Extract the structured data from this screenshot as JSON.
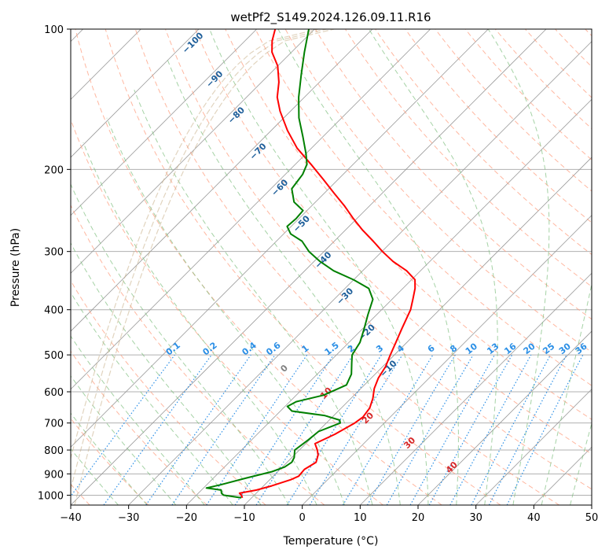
{
  "chart_data": {
    "type": "line",
    "title": "wetPf2_S149.2024.126.09.11.R16",
    "xlabel": "Temperature (°C)",
    "ylabel": "Pressure (hPa)",
    "xlim": [
      -40,
      50
    ],
    "ylim": [
      1050,
      100
    ],
    "y_scale": "log",
    "x_ticks": [
      "−40",
      "−30",
      "−20",
      "−10",
      "0",
      "10",
      "20",
      "30",
      "40",
      "50"
    ],
    "x_tick_values": [
      -40,
      -30,
      -20,
      -10,
      0,
      10,
      20,
      30,
      40,
      50
    ],
    "y_ticks": [
      "100",
      "200",
      "300",
      "400",
      "500",
      "600",
      "700",
      "800",
      "900",
      "1000"
    ],
    "y_tick_values": [
      100,
      200,
      300,
      400,
      500,
      600,
      700,
      800,
      900,
      1000
    ],
    "grid": true,
    "skew": 45,
    "series": [
      {
        "role": "temperature",
        "color": "#ff0000",
        "points": [
          [
            1013,
            -11.6
          ],
          [
            1000,
            -12.2
          ],
          [
            990,
            -12.9
          ],
          [
            975,
            -10.5
          ],
          [
            955,
            -8.6
          ],
          [
            925,
            -6.3
          ],
          [
            910,
            -5.6
          ],
          [
            880,
            -5.8
          ],
          [
            850,
            -5.0
          ],
          [
            820,
            -5.9
          ],
          [
            800,
            -6.9
          ],
          [
            775,
            -8.4
          ],
          [
            740,
            -6.6
          ],
          [
            700,
            -5.1
          ],
          [
            680,
            -4.7
          ],
          [
            650,
            -5.1
          ],
          [
            620,
            -6.2
          ],
          [
            590,
            -7.7
          ],
          [
            560,
            -8.8
          ],
          [
            530,
            -9.5
          ],
          [
            500,
            -10.7
          ],
          [
            470,
            -11.9
          ],
          [
            440,
            -13.2
          ],
          [
            400,
            -15.0
          ],
          [
            380,
            -16.4
          ],
          [
            360,
            -17.9
          ],
          [
            345,
            -19.4
          ],
          [
            330,
            -22.4
          ],
          [
            315,
            -26.4
          ],
          [
            300,
            -29.9
          ],
          [
            285,
            -33.3
          ],
          [
            270,
            -37.0
          ],
          [
            255,
            -40.6
          ],
          [
            240,
            -44.2
          ],
          [
            225,
            -48.3
          ],
          [
            210,
            -52.6
          ],
          [
            195,
            -57.3
          ],
          [
            180,
            -62.5
          ],
          [
            165,
            -67.2
          ],
          [
            150,
            -71.8
          ],
          [
            140,
            -74.7
          ],
          [
            130,
            -77.0
          ],
          [
            120,
            -80.0
          ],
          [
            112,
            -83.4
          ],
          [
            106,
            -85.3
          ],
          [
            100,
            -86.8
          ]
        ]
      },
      {
        "role": "dewpoint",
        "color": "#008000",
        "points": [
          [
            1013,
            -11.8
          ],
          [
            1000,
            -15.3
          ],
          [
            990,
            -16.0
          ],
          [
            975,
            -16.6
          ],
          [
            965,
            -19.5
          ],
          [
            950,
            -17.6
          ],
          [
            920,
            -14.5
          ],
          [
            890,
            -11.0
          ],
          [
            870,
            -9.6
          ],
          [
            850,
            -9.2
          ],
          [
            830,
            -9.6
          ],
          [
            800,
            -10.8
          ],
          [
            760,
            -10.2
          ],
          [
            730,
            -9.9
          ],
          [
            700,
            -7.6
          ],
          [
            690,
            -8.2
          ],
          [
            675,
            -11.5
          ],
          [
            660,
            -18.0
          ],
          [
            645,
            -19.6
          ],
          [
            630,
            -18.9
          ],
          [
            610,
            -15.3
          ],
          [
            580,
            -13.1
          ],
          [
            550,
            -14.1
          ],
          [
            520,
            -16.0
          ],
          [
            500,
            -17.3
          ],
          [
            470,
            -18.1
          ],
          [
            440,
            -19.7
          ],
          [
            410,
            -21.5
          ],
          [
            380,
            -23.3
          ],
          [
            360,
            -25.9
          ],
          [
            345,
            -30.0
          ],
          [
            330,
            -35.0
          ],
          [
            315,
            -39.0
          ],
          [
            300,
            -42.6
          ],
          [
            285,
            -45.6
          ],
          [
            275,
            -48.8
          ],
          [
            265,
            -50.7
          ],
          [
            255,
            -50.5
          ],
          [
            245,
            -50.7
          ],
          [
            235,
            -53.7
          ],
          [
            220,
            -56.4
          ],
          [
            205,
            -57.0
          ],
          [
            195,
            -58.0
          ],
          [
            185,
            -60.0
          ],
          [
            170,
            -63.5
          ],
          [
            155,
            -67.4
          ],
          [
            140,
            -71.0
          ],
          [
            125,
            -74.5
          ],
          [
            112,
            -77.8
          ],
          [
            100,
            -81.0
          ]
        ]
      }
    ],
    "dry_adiabat_labels": [
      "−100",
      "−90",
      "−80",
      "−70",
      "−60",
      "−50",
      "−40",
      "−30",
      "−20",
      "−10"
    ],
    "mixing_ratio_labels": [
      "0.1",
      "0.2",
      "0.4",
      "0.6",
      "1",
      "1.5",
      "2",
      "3",
      "4",
      "6",
      "8",
      "10",
      "13",
      "16",
      "20",
      "25",
      "30",
      "36"
    ],
    "moist_adiabat_labels": [
      "0",
      "10",
      "20",
      "30",
      "40"
    ],
    "colors": {
      "temperature": "#ff0000",
      "dewpoint": "#008000",
      "dry_adiabat": "#ff9f80",
      "dry_adiabat_label": "#1f5f9a",
      "moist_adiabat": "#7fbf7f",
      "mixing_ratio": "#2b8fe6",
      "moist_label": "#d62728",
      "grid": "#b0b0b0",
      "isotherm": "#9a9a9a",
      "theta_e": "#c8b08a"
    }
  }
}
